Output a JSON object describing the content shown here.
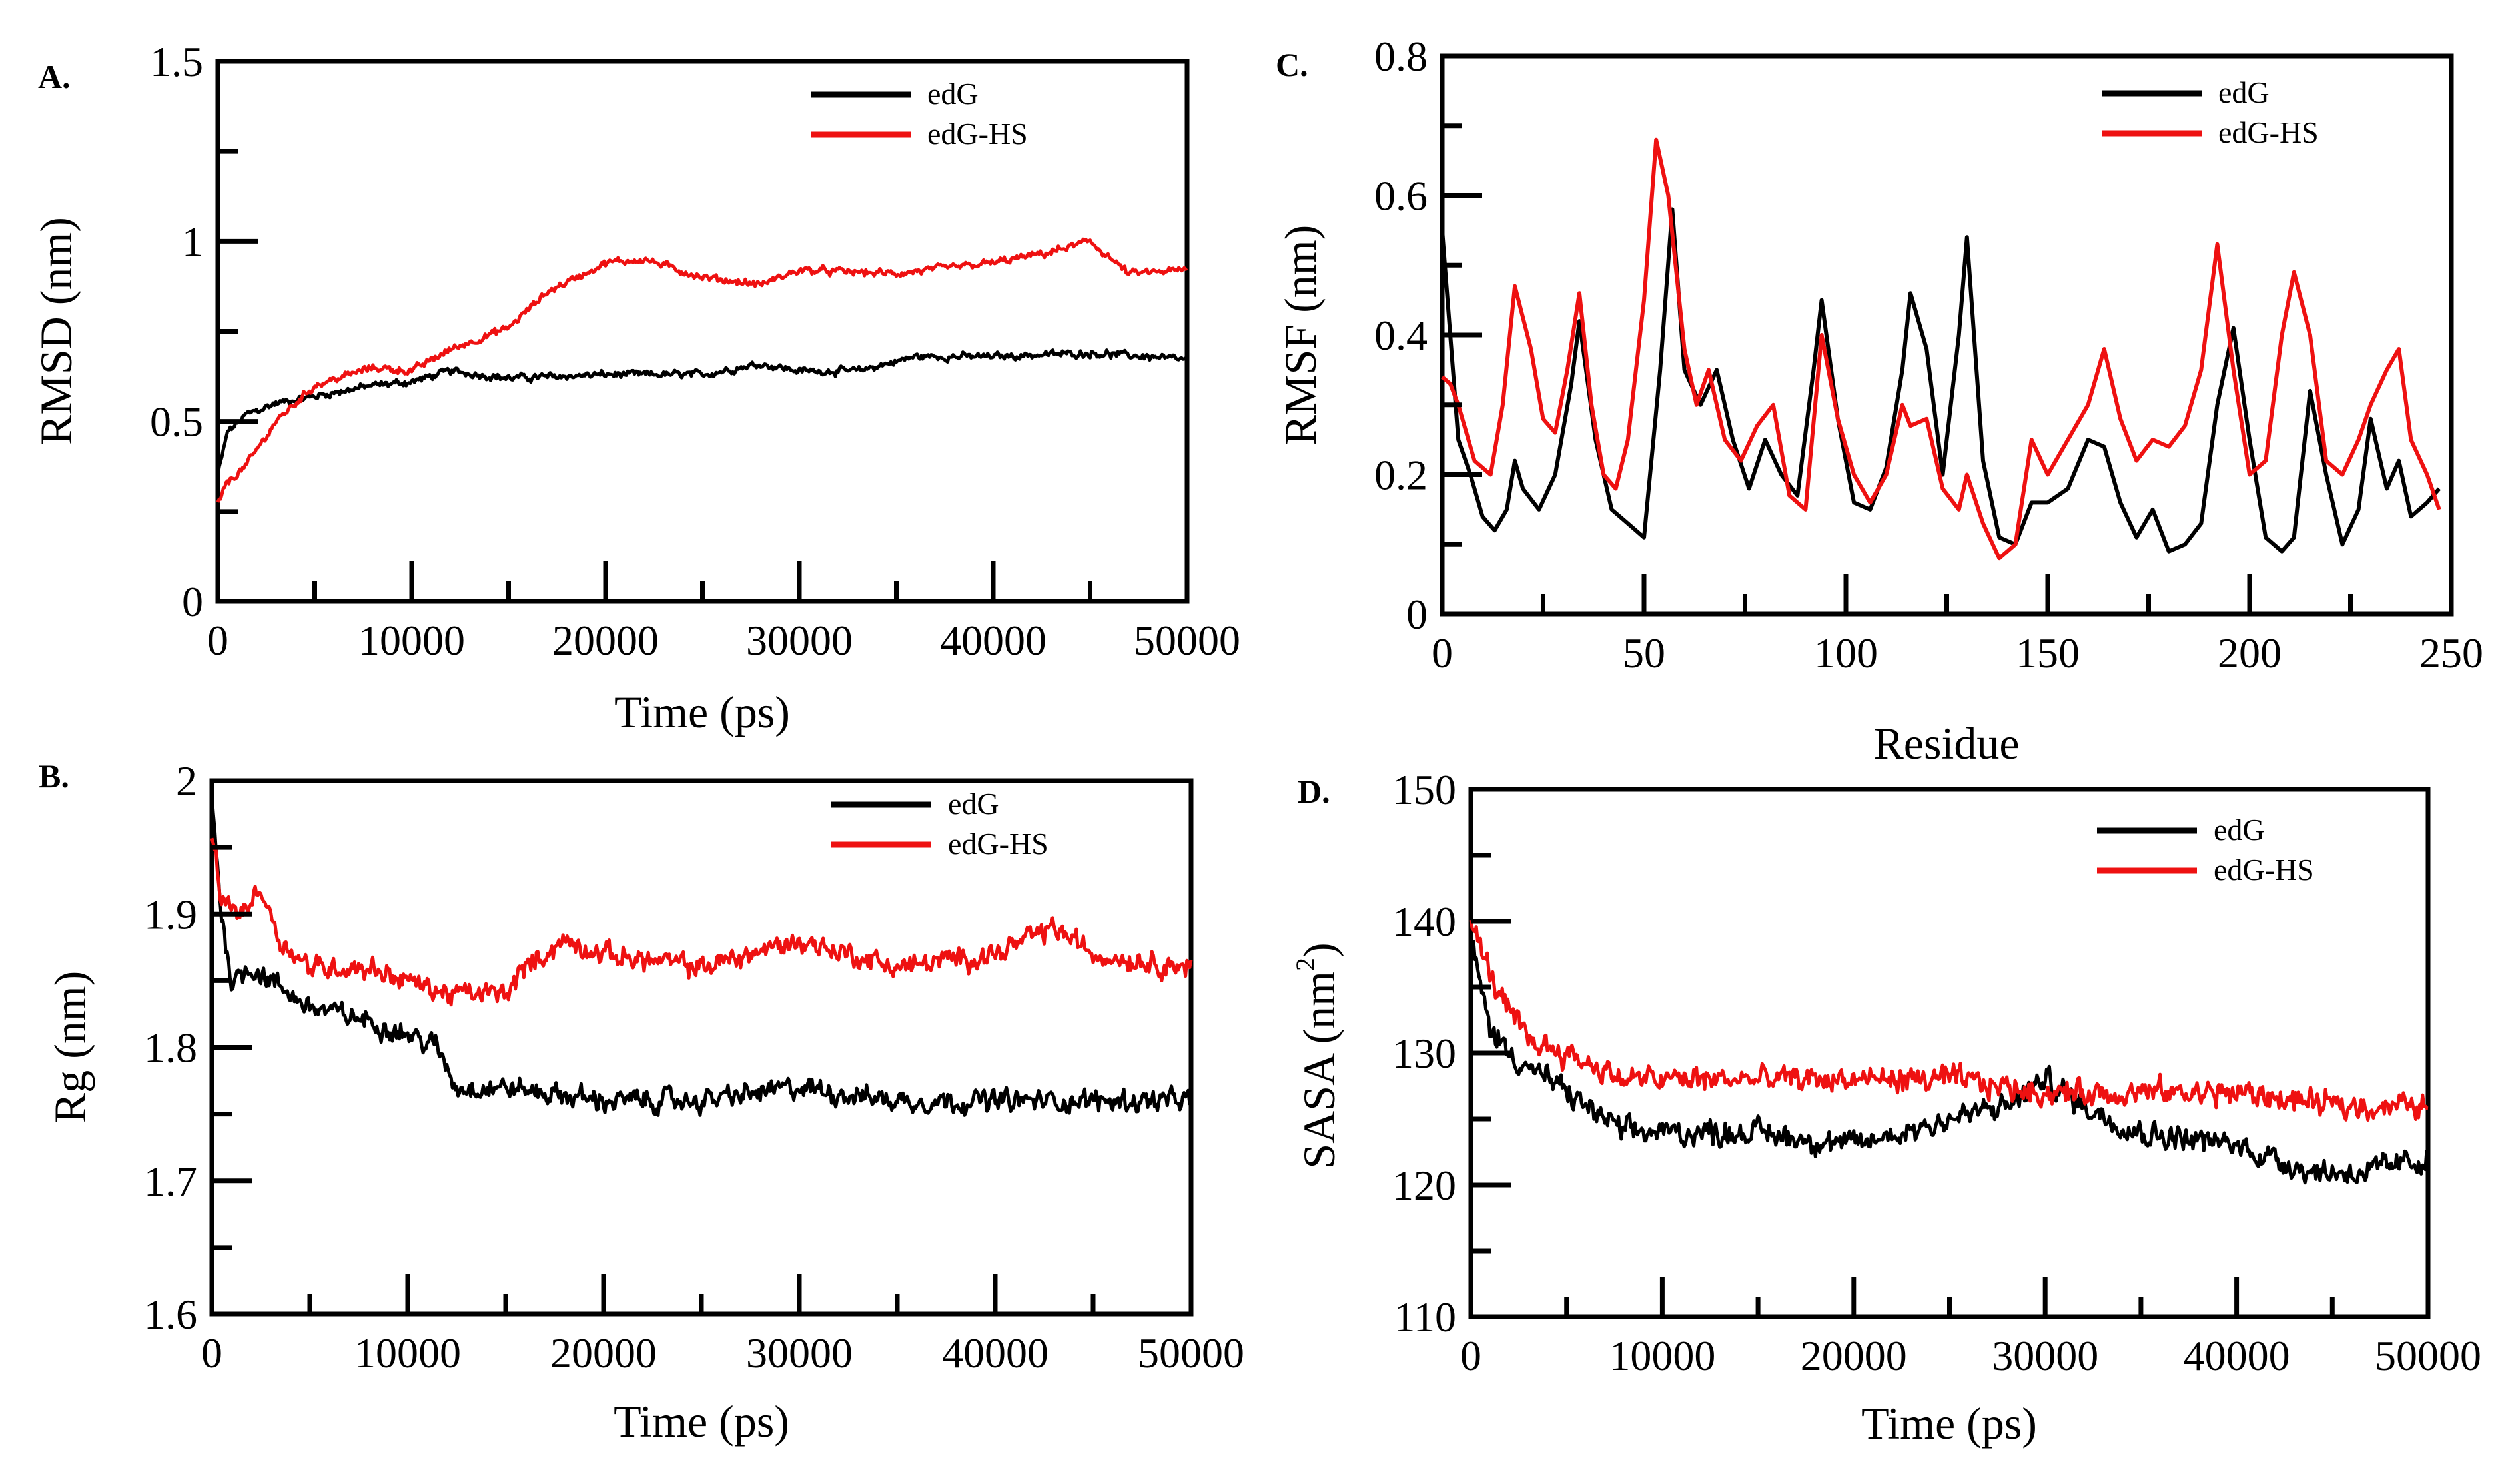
{
  "colors": {
    "edG": "#000000",
    "edG-HS": "#ee1111",
    "axis": "#000000"
  },
  "chart_data": [
    {
      "id": "A",
      "panel_label": "A.",
      "type": "line",
      "xlabel": "Time (ps)",
      "ylabel": "RMSD (nm)",
      "xlim": [
        0,
        50000
      ],
      "ylim": [
        0,
        1.5
      ],
      "xticks": [
        0,
        10000,
        20000,
        30000,
        40000,
        50000
      ],
      "xtick_labels": [
        "0",
        "10000",
        "20000",
        "30000",
        "40000",
        "50000"
      ],
      "yticks": [
        0,
        0.5,
        1,
        1.5
      ],
      "ytick_labels": [
        "0",
        "0.5",
        "1",
        "1.5"
      ],
      "legend_position": "top-right",
      "noise": 0.015,
      "series": [
        {
          "name": "edG",
          "color": "#000000",
          "x": [
            0,
            500,
            1500,
            3000,
            5000,
            8000,
            10000,
            12000,
            15000,
            20000,
            25000,
            28000,
            30000,
            33000,
            36000,
            40000,
            45000,
            48000,
            50000
          ],
          "y": [
            0.35,
            0.47,
            0.52,
            0.55,
            0.57,
            0.6,
            0.61,
            0.64,
            0.62,
            0.63,
            0.63,
            0.66,
            0.64,
            0.64,
            0.68,
            0.68,
            0.69,
            0.68,
            0.67
          ]
        },
        {
          "name": "edG-HS",
          "color": "#ee1111",
          "x": [
            0,
            500,
            1500,
            3000,
            5000,
            8000,
            10000,
            12000,
            15000,
            17000,
            20000,
            22000,
            25000,
            28000,
            30000,
            35000,
            40000,
            43000,
            45000,
            47000,
            50000
          ],
          "y": [
            0.27,
            0.33,
            0.38,
            0.5,
            0.6,
            0.65,
            0.64,
            0.7,
            0.76,
            0.86,
            0.94,
            0.95,
            0.9,
            0.88,
            0.92,
            0.91,
            0.94,
            0.97,
            1.0,
            0.91,
            0.92
          ]
        }
      ]
    },
    {
      "id": "B",
      "panel_label": "B.",
      "type": "line",
      "xlabel": "Time (ps)",
      "ylabel": "Rg (nm)",
      "xlim": [
        0,
        50000
      ],
      "ylim": [
        1.6,
        2.0
      ],
      "xticks": [
        0,
        10000,
        20000,
        30000,
        40000,
        50000
      ],
      "xtick_labels": [
        "0",
        "10000",
        "20000",
        "30000",
        "40000",
        "50000"
      ],
      "yticks": [
        1.6,
        1.7,
        1.8,
        1.9,
        2.0
      ],
      "ytick_labels": [
        "1.6",
        "1.7",
        "1.8",
        "1.9",
        "2"
      ],
      "legend_position": "top-right",
      "noise": 0.012,
      "series": [
        {
          "name": "edG",
          "color": "#000000",
          "x": [
            0,
            500,
            1000,
            2000,
            3000,
            5000,
            8000,
            10000,
            11500,
            12500,
            15000,
            20000,
            25000,
            30000,
            35000,
            40000,
            45000,
            50000
          ],
          "y": [
            1.99,
            1.9,
            1.85,
            1.86,
            1.85,
            1.83,
            1.82,
            1.81,
            1.8,
            1.77,
            1.77,
            1.76,
            1.76,
            1.77,
            1.76,
            1.76,
            1.76,
            1.76
          ]
        },
        {
          "name": "edG-HS",
          "color": "#ee1111",
          "x": [
            0,
            500,
            1500,
            2500,
            3500,
            5000,
            8000,
            10000,
            12000,
            15000,
            16000,
            18000,
            20000,
            25000,
            30000,
            35000,
            40000,
            43000,
            45000,
            50000
          ],
          "y": [
            1.96,
            1.91,
            1.9,
            1.92,
            1.88,
            1.86,
            1.86,
            1.85,
            1.84,
            1.84,
            1.86,
            1.88,
            1.87,
            1.86,
            1.88,
            1.86,
            1.87,
            1.89,
            1.87,
            1.86
          ]
        }
      ]
    },
    {
      "id": "C",
      "panel_label": "C.",
      "type": "line",
      "xlabel": "Residue",
      "ylabel": "RMSF (nm)",
      "xlim": [
        0,
        250
      ],
      "ylim": [
        0,
        0.8
      ],
      "xticks": [
        0,
        50,
        100,
        150,
        200,
        250
      ],
      "xtick_labels": [
        "0",
        "50",
        "100",
        "150",
        "200",
        "250"
      ],
      "yticks": [
        0,
        0.2,
        0.4,
        0.6,
        0.8
      ],
      "ytick_labels": [
        "0",
        "0.2",
        "0.4",
        "0.6",
        "0.8"
      ],
      "legend_position": "top-right",
      "noise": 0,
      "series": [
        {
          "name": "edG",
          "color": "#000000",
          "x": [
            0,
            2,
            4,
            7,
            10,
            13,
            16,
            18,
            20,
            24,
            28,
            32,
            34,
            38,
            42,
            46,
            50,
            54,
            57,
            60,
            64,
            68,
            72,
            76,
            80,
            84,
            88,
            92,
            94,
            98,
            102,
            106,
            110,
            114,
            116,
            120,
            124,
            128,
            130,
            134,
            138,
            142,
            146,
            150,
            155,
            160,
            164,
            168,
            172,
            176,
            180,
            184,
            188,
            192,
            196,
            200,
            204,
            208,
            211,
            215,
            219,
            223,
            227,
            230,
            234,
            237,
            240,
            244,
            247
          ],
          "y": [
            0.55,
            0.4,
            0.25,
            0.2,
            0.14,
            0.12,
            0.15,
            0.22,
            0.18,
            0.15,
            0.2,
            0.33,
            0.42,
            0.25,
            0.15,
            0.13,
            0.11,
            0.35,
            0.58,
            0.35,
            0.3,
            0.35,
            0.25,
            0.18,
            0.25,
            0.2,
            0.17,
            0.35,
            0.45,
            0.28,
            0.16,
            0.15,
            0.21,
            0.35,
            0.46,
            0.38,
            0.2,
            0.4,
            0.54,
            0.22,
            0.11,
            0.1,
            0.16,
            0.16,
            0.18,
            0.25,
            0.24,
            0.16,
            0.11,
            0.15,
            0.09,
            0.1,
            0.13,
            0.3,
            0.41,
            0.25,
            0.11,
            0.09,
            0.11,
            0.32,
            0.2,
            0.1,
            0.15,
            0.28,
            0.18,
            0.22,
            0.14,
            0.16,
            0.18
          ]
        },
        {
          "name": "edG-HS",
          "color": "#ee1111",
          "x": [
            0,
            2,
            4,
            8,
            12,
            15,
            18,
            22,
            25,
            28,
            31,
            34,
            37,
            40,
            43,
            46,
            50,
            53,
            56,
            60,
            63,
            66,
            70,
            74,
            78,
            82,
            86,
            90,
            94,
            98,
            102,
            106,
            110,
            114,
            116,
            120,
            124,
            128,
            130,
            134,
            138,
            142,
            146,
            150,
            155,
            160,
            164,
            168,
            172,
            176,
            180,
            184,
            188,
            192,
            196,
            200,
            204,
            208,
            211,
            215,
            219,
            223,
            227,
            230,
            234,
            237,
            240,
            244,
            247
          ],
          "y": [
            0.34,
            0.33,
            0.3,
            0.22,
            0.2,
            0.3,
            0.47,
            0.38,
            0.28,
            0.26,
            0.35,
            0.46,
            0.3,
            0.2,
            0.18,
            0.25,
            0.45,
            0.68,
            0.6,
            0.38,
            0.3,
            0.35,
            0.25,
            0.22,
            0.27,
            0.3,
            0.17,
            0.15,
            0.4,
            0.28,
            0.2,
            0.16,
            0.2,
            0.3,
            0.27,
            0.28,
            0.18,
            0.15,
            0.2,
            0.13,
            0.08,
            0.1,
            0.25,
            0.2,
            0.25,
            0.3,
            0.38,
            0.28,
            0.22,
            0.25,
            0.24,
            0.27,
            0.35,
            0.53,
            0.35,
            0.2,
            0.22,
            0.4,
            0.49,
            0.4,
            0.22,
            0.2,
            0.25,
            0.3,
            0.35,
            0.38,
            0.25,
            0.2,
            0.15
          ]
        }
      ]
    },
    {
      "id": "D",
      "panel_label": "D.",
      "type": "line",
      "xlabel": "Time (ps)",
      "ylabel": "SASA (nm",
      "ylabel_sup": "2",
      "ylabel_close": ")",
      "xlim": [
        0,
        50000
      ],
      "ylim": [
        110,
        150
      ],
      "xticks": [
        0,
        10000,
        20000,
        30000,
        40000,
        50000
      ],
      "xtick_labels": [
        "0",
        "10000",
        "20000",
        "30000",
        "40000",
        "50000"
      ],
      "yticks": [
        110,
        120,
        130,
        140,
        150
      ],
      "ytick_labels": [
        "110",
        "120",
        "130",
        "140",
        "150"
      ],
      "legend_position": "top-right",
      "noise": 1.4,
      "series": [
        {
          "name": "edG",
          "color": "#000000",
          "x": [
            0,
            500,
            1000,
            2000,
            3000,
            5000,
            8000,
            10000,
            15000,
            20000,
            25000,
            28000,
            30000,
            32000,
            35000,
            40000,
            44000,
            47000,
            50000
          ],
          "y": [
            139,
            135,
            132,
            130,
            129,
            127,
            124,
            124,
            124,
            123,
            125,
            126,
            128,
            126,
            124,
            123,
            121,
            121,
            122
          ]
        },
        {
          "name": "edG-HS",
          "color": "#ee1111",
          "x": [
            0,
            500,
            1000,
            2000,
            3000,
            5000,
            8000,
            10000,
            15000,
            20000,
            25000,
            30000,
            35000,
            40000,
            45000,
            50000
          ],
          "y": [
            140,
            138,
            136,
            133,
            131,
            130,
            128,
            128,
            128,
            128,
            128,
            127,
            127,
            127,
            126,
            126
          ]
        }
      ]
    }
  ]
}
